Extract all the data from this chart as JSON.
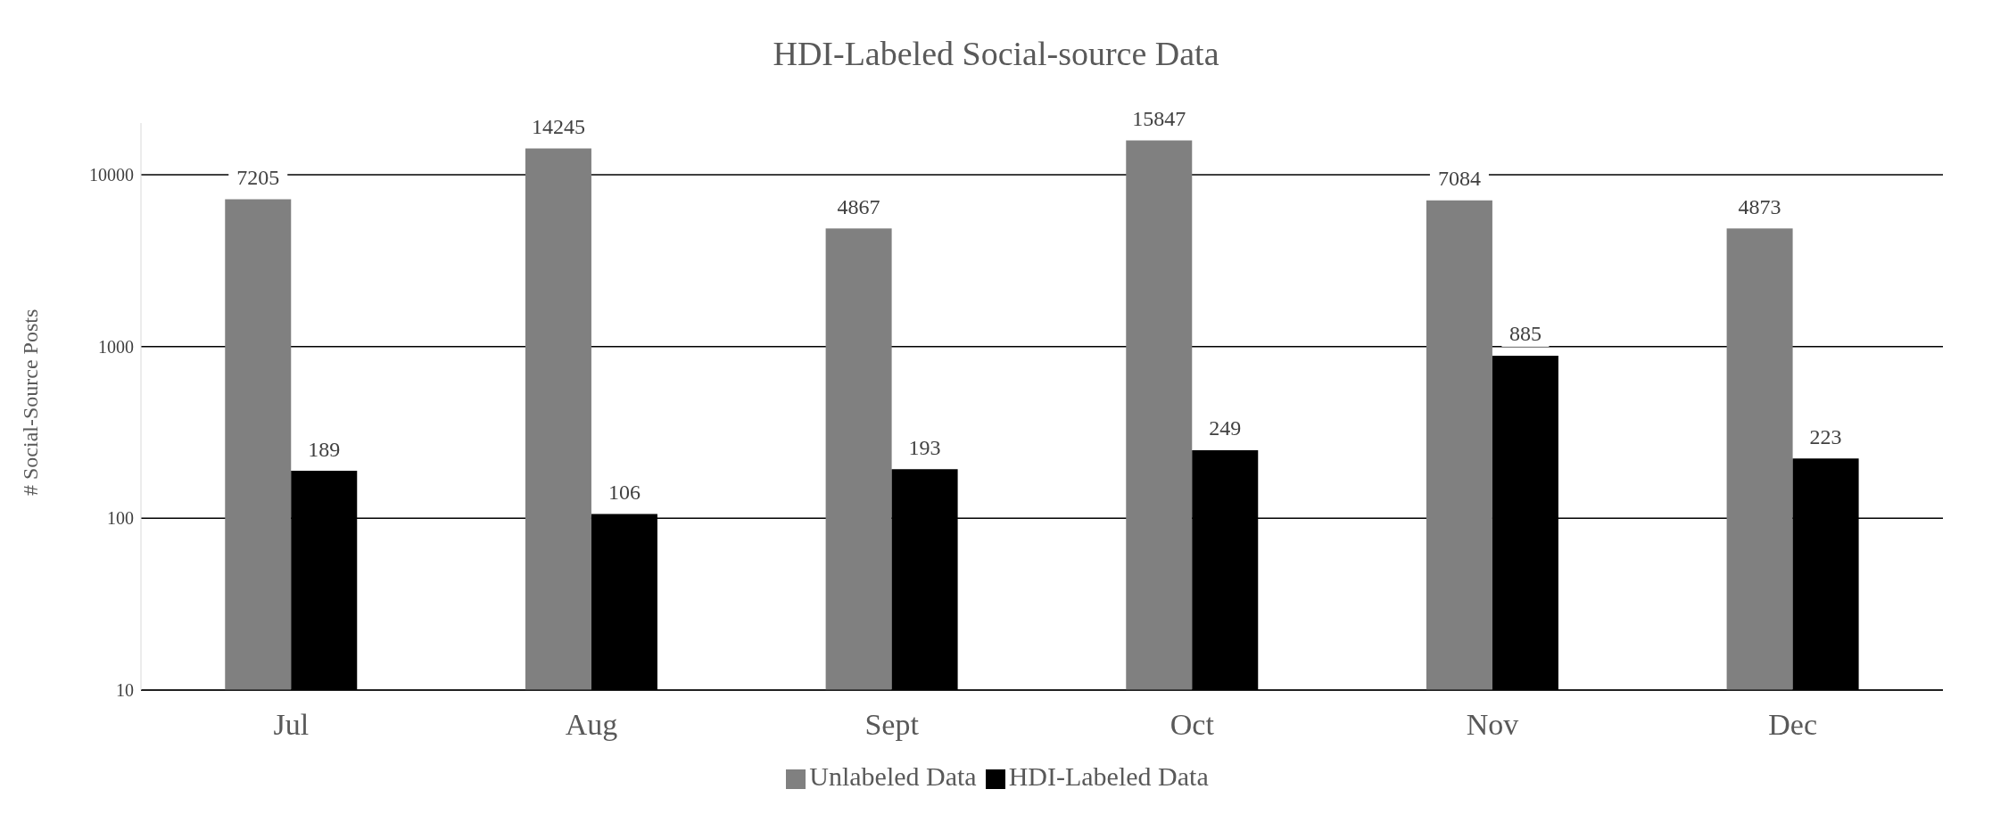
{
  "chart_data": {
    "type": "bar",
    "title": "HDI-Labeled Social-source Data",
    "ylabel": "# Social-Source Posts",
    "categories": [
      "Jul",
      "Aug",
      "Sept",
      "Oct",
      "Nov",
      "Dec"
    ],
    "series": [
      {
        "name": "Unlabeled Data",
        "color": "#808080",
        "values": [
          7205,
          14245,
          4867,
          15847,
          7084,
          4873
        ]
      },
      {
        "name": "HDI-Labeled Data",
        "color": "#000000",
        "values": [
          189,
          106,
          193,
          249,
          885,
          223
        ]
      }
    ],
    "log": "y",
    "ylim": [
      10,
      20000
    ],
    "yticks": [
      10,
      100,
      1000,
      10000
    ],
    "grid": "y",
    "legend": "bottom",
    "data_labels": true
  }
}
